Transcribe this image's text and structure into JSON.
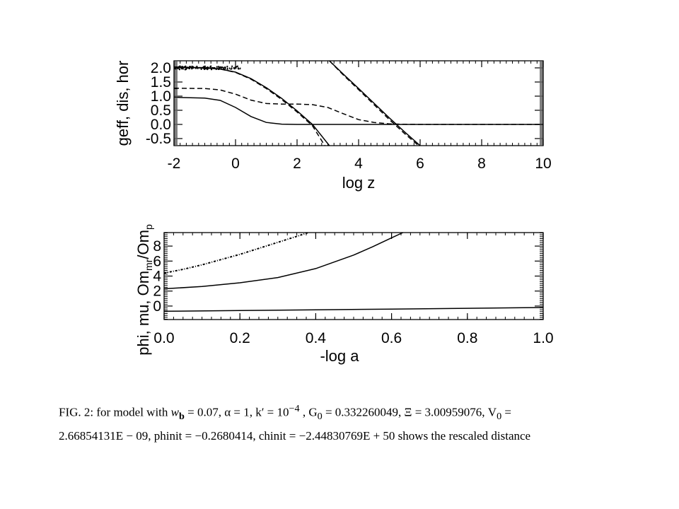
{
  "chart_data": [
    {
      "type": "line",
      "xlabel": "log z",
      "ylabel": "geff, dis, hor",
      "xlim": [
        -2,
        10
      ],
      "ylim": [
        -0.75,
        2.25
      ],
      "x_ticks": [
        -2,
        0,
        2,
        4,
        6,
        8,
        10
      ],
      "x_tick_labels": [
        "-2",
        "0",
        "2",
        "4",
        "6",
        "8",
        "10"
      ],
      "y_ticks": [
        -0.5,
        0.0,
        0.5,
        1.0,
        1.5,
        2.0
      ],
      "y_tick_labels": [
        "-0.5",
        "0.0",
        "0.5",
        "1.0",
        "1.5",
        "2.0"
      ],
      "series": [
        {
          "style": "dotted-noisy",
          "x": [
            -2.0,
            -1.5,
            -1.0,
            -0.5,
            -0.2,
            0.0,
            0.2
          ],
          "y": [
            2.02,
            2.01,
            2.0,
            1.99,
            1.98,
            2.0,
            1.97
          ]
        },
        {
          "style": "solid",
          "x": [
            -2.0,
            -1.0,
            -0.5,
            0.0,
            0.5,
            1.0,
            1.5,
            2.0,
            2.5,
            3.05
          ],
          "y": [
            2.03,
            2.0,
            1.96,
            1.85,
            1.62,
            1.3,
            0.92,
            0.48,
            0.0,
            -0.75
          ]
        },
        {
          "style": "dashed",
          "x": [
            -2.0,
            -1.0,
            -0.5,
            0.0,
            0.5,
            1.0,
            1.5,
            2.0,
            2.5,
            2.9
          ],
          "y": [
            2.03,
            2.0,
            1.96,
            1.84,
            1.6,
            1.27,
            0.88,
            0.44,
            -0.05,
            -0.75
          ]
        },
        {
          "style": "solid",
          "x": [
            3.05,
            3.5,
            4.0,
            4.5,
            5.0,
            5.5,
            6.0
          ],
          "y": [
            2.25,
            1.78,
            1.27,
            0.75,
            0.23,
            -0.27,
            -0.75
          ]
        },
        {
          "style": "dashed",
          "x": [
            3.05,
            3.5,
            4.0,
            4.5,
            5.0,
            5.5,
            5.95
          ],
          "y": [
            2.25,
            1.75,
            1.23,
            0.7,
            0.17,
            -0.33,
            -0.75
          ]
        },
        {
          "style": "dashed",
          "x": [
            -2.0,
            -1.0,
            -0.5,
            0.0,
            0.5,
            1.0,
            1.5,
            2.0,
            2.5,
            3.0,
            3.5,
            4.0,
            4.5,
            5.0,
            5.5,
            6.0,
            7.0,
            10.0
          ],
          "y": [
            1.28,
            1.27,
            1.22,
            1.07,
            0.86,
            0.74,
            0.72,
            0.72,
            0.7,
            0.6,
            0.38,
            0.17,
            0.07,
            0.02,
            0.005,
            0.0,
            0.0,
            0.0
          ]
        },
        {
          "style": "solid",
          "x": [
            -2.0,
            -1.0,
            -0.5,
            0.0,
            0.5,
            1.0,
            1.5,
            2.0,
            3.0,
            10.0
          ],
          "y": [
            0.96,
            0.93,
            0.85,
            0.6,
            0.28,
            0.07,
            0.01,
            0.0,
            0.0,
            0.0
          ]
        }
      ]
    },
    {
      "type": "line",
      "xlabel": "-log a",
      "ylabel": "phi, mu, Om",
      "ylabel_sub1": "mr",
      "ylabel_mid": "/Om",
      "ylabel_sub2": "p",
      "xlim": [
        0.0,
        1.0
      ],
      "ylim": [
        -1.8,
        9.8
      ],
      "x_ticks": [
        0.0,
        0.2,
        0.4,
        0.6,
        0.8,
        1.0
      ],
      "x_tick_labels": [
        "0.0",
        "0.2",
        "0.4",
        "0.6",
        "0.8",
        "1.0"
      ],
      "y_ticks": [
        0,
        2,
        4,
        6,
        8
      ],
      "y_tick_labels": [
        "0",
        "2",
        "4",
        "6",
        "8"
      ],
      "series": [
        {
          "style": "dash-dot",
          "x": [
            0.0,
            0.05,
            0.1,
            0.15,
            0.2,
            0.25,
            0.3,
            0.35,
            0.38
          ],
          "y": [
            4.4,
            4.9,
            5.5,
            6.2,
            6.9,
            7.7,
            8.5,
            9.3,
            9.8
          ]
        },
        {
          "style": "solid",
          "x": [
            0.0,
            0.1,
            0.2,
            0.3,
            0.4,
            0.5,
            0.55,
            0.6,
            0.63
          ],
          "y": [
            2.3,
            2.6,
            3.1,
            3.8,
            5.0,
            6.8,
            7.9,
            9.1,
            9.8
          ]
        },
        {
          "style": "solid",
          "x": [
            0.0,
            0.2,
            0.4,
            0.6,
            0.8,
            1.0
          ],
          "y": [
            -0.7,
            -0.6,
            -0.5,
            -0.4,
            -0.3,
            -0.2
          ]
        }
      ]
    }
  ],
  "caption": {
    "prefix": "FIG. 2:  for model with ",
    "line1_rest": " = 0.07,  α = 1,  k′ = 10",
    "k_exp": "−4",
    "line1_tail": " ,  G",
    "g_sub": "0",
    "line1_end": " = 0.332260049, Ξ = 3.00959076, V",
    "v_sub": "0",
    "line1_final": " =",
    "w_var": "w",
    "w_sub": "b",
    "line2": "2.66854131E − 09, phinit = −0.2680414, chinit = −2.44830769E + 50 shows the rescaled distance"
  }
}
